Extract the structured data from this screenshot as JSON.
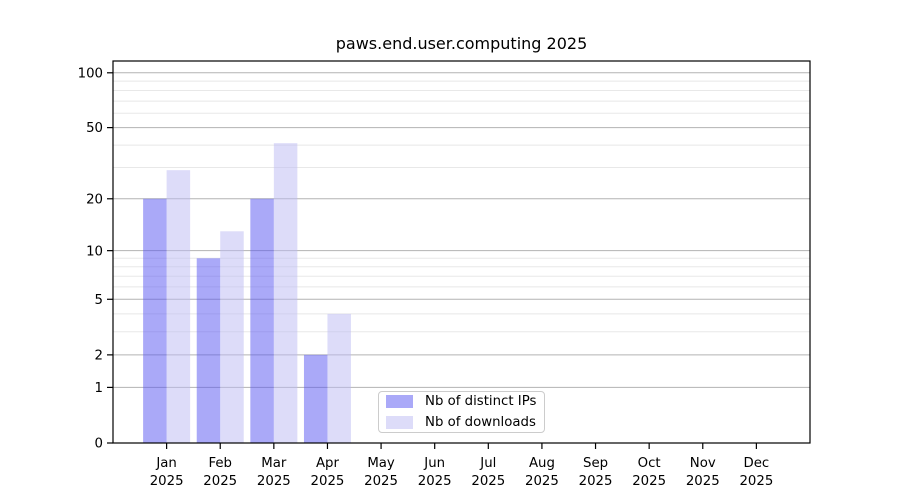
{
  "chart_data": {
    "type": "bar",
    "title": "paws.end.user.computing 2025",
    "x": [
      "Jan 2025",
      "Feb 2025",
      "Mar 2025",
      "Apr 2025",
      "May 2025",
      "Jun 2025",
      "Jul 2025",
      "Aug 2025",
      "Sep 2025",
      "Oct 2025",
      "Nov 2025",
      "Dec 2025"
    ],
    "months": [
      "Jan",
      "Feb",
      "Mar",
      "Apr",
      "May",
      "Jun",
      "Jul",
      "Aug",
      "Sep",
      "Oct",
      "Nov",
      "Dec"
    ],
    "year_label": "2025",
    "series": [
      {
        "name": "Nb of distinct IPs",
        "color": "#aaa9f8",
        "values": [
          20,
          9,
          20,
          2,
          0,
          0,
          0,
          0,
          0,
          0,
          0,
          0
        ]
      },
      {
        "name": "Nb of downloads",
        "color": "#dddcf9",
        "values": [
          29,
          13,
          41,
          4,
          0,
          0,
          0,
          0,
          0,
          0,
          0,
          0
        ]
      }
    ],
    "y_scale": "log1p",
    "ylim": [
      0,
      115
    ],
    "y_major_ticks": [
      100,
      50,
      20,
      10,
      5,
      2,
      1,
      0
    ],
    "y_minor_gridlines": [
      3,
      4,
      6,
      7,
      8,
      9,
      30,
      40,
      60,
      70,
      80,
      90
    ],
    "grid": "both",
    "legend_position": "inside-lower-center"
  },
  "legend": {
    "items": [
      {
        "label": "Nb of distinct IPs",
        "color": "#aaa9f8"
      },
      {
        "label": "Nb of downloads",
        "color": "#dddcf9"
      }
    ]
  },
  "colors": {
    "grid_major": "#b3b3b3",
    "grid_minor": "#e8e8e8",
    "spine": "#000000",
    "tick_text": "#000000",
    "background": "#ffffff"
  }
}
